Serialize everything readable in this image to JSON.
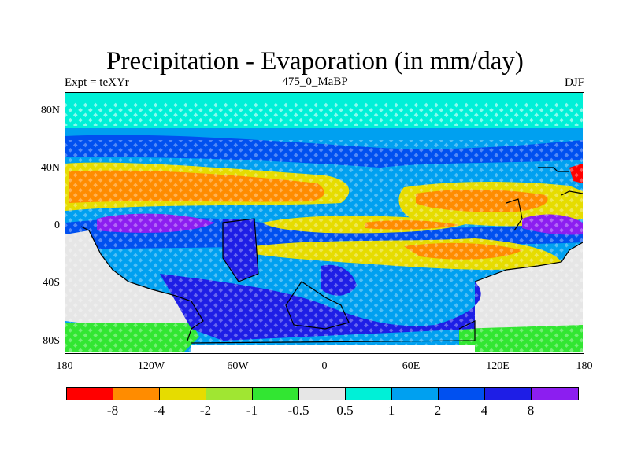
{
  "title": "Precipitation - Evaporation (in mm/day)",
  "subtitle_left": "Expt = teXYr",
  "subtitle_center": "475_0_MaBP",
  "subtitle_right": "DJF",
  "y_ticks": [
    "80N",
    "40N",
    "0",
    "40S",
    "80S"
  ],
  "x_ticks": [
    "180",
    "120W",
    "60W",
    "0",
    "60E",
    "120E",
    "180"
  ],
  "colorbar": {
    "colors": [
      "#ff0000",
      "#ff8c00",
      "#e6dc00",
      "#a0e632",
      "#32e632",
      "#e6e6e6",
      "#00f0d7",
      "#00a0f0",
      "#0050f0",
      "#1e1ee6",
      "#8c1ef0"
    ],
    "labels": [
      "-8",
      "-4",
      "-2",
      "-1",
      "-0.5",
      "0.5",
      "1",
      "2",
      "4",
      "8"
    ]
  }
}
